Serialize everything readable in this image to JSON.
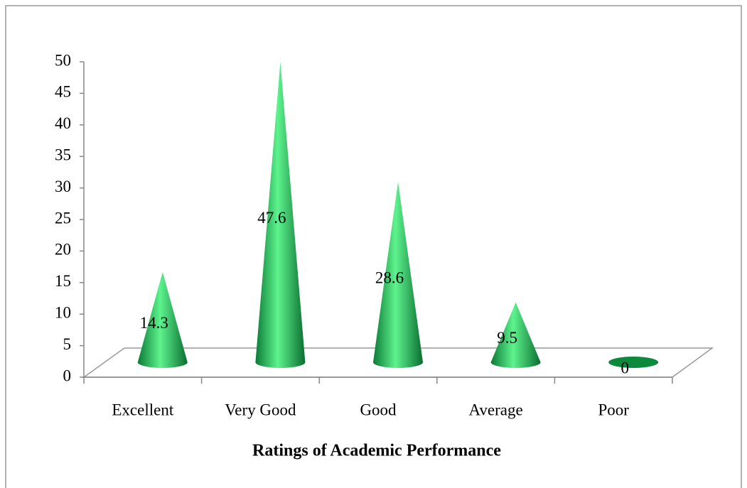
{
  "chart_data": {
    "type": "cone",
    "x_label": "Ratings of Academic Performance",
    "categories": [
      "Excellent",
      "Very Good",
      "Good",
      "Average",
      "Poor"
    ],
    "values": [
      14.3,
      47.6,
      28.6,
      9.5,
      0
    ],
    "color": "#1aa64a",
    "ylim": [
      0,
      50
    ],
    "yticks": [
      0,
      5,
      10,
      15,
      20,
      25,
      30,
      35,
      40,
      45,
      50
    ],
    "grid": false
  }
}
